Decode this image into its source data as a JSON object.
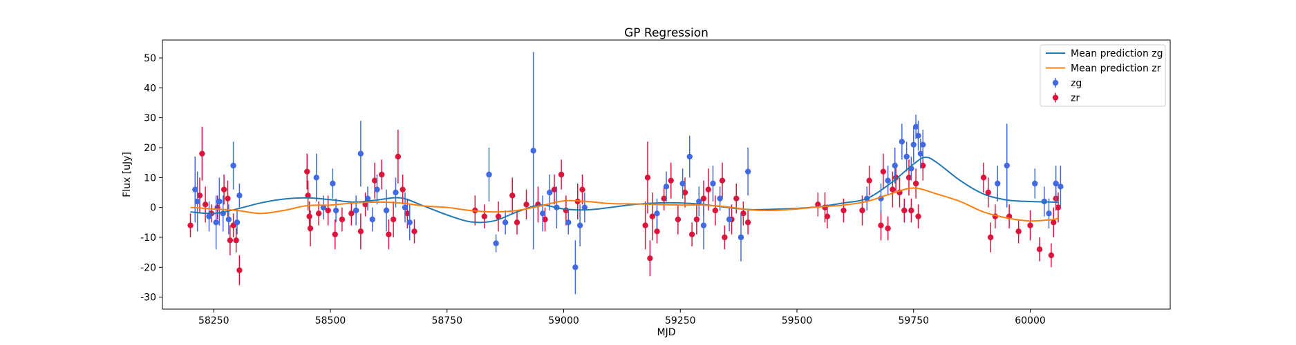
{
  "chart_data": {
    "type": "scatter",
    "title": "GP Regression",
    "xlabel": "MJD",
    "ylabel": "Flux [uJy]",
    "xlim": [
      58140,
      60300
    ],
    "ylim": [
      -34,
      56
    ],
    "xticks": [
      58250,
      58500,
      58750,
      59000,
      59250,
      59500,
      59750,
      60000
    ],
    "yticks": [
      -30,
      -20,
      -10,
      0,
      10,
      20,
      30,
      40,
      50
    ],
    "grid": false,
    "legend_position": "top-right",
    "series": [
      {
        "name": "Mean prediction zg",
        "kind": "line",
        "color": "#1f77b4",
        "x": [
          58200,
          58250,
          58300,
          58350,
          58400,
          58450,
          58500,
          58550,
          58600,
          58650,
          58700,
          58750,
          58800,
          58850,
          58900,
          58950,
          59000,
          59050,
          59100,
          59150,
          59200,
          59250,
          59300,
          59350,
          59400,
          59450,
          59500,
          59550,
          59600,
          59650,
          59700,
          59750,
          59775,
          59800,
          59850,
          59900,
          59950,
          60000,
          60050,
          60060
        ],
        "y": [
          -1.5,
          -2,
          -0.5,
          1.5,
          2.8,
          3.2,
          2.6,
          1.8,
          2.5,
          3.2,
          0.5,
          -2.5,
          -4.8,
          -4.5,
          -1.5,
          0.8,
          -0.5,
          -0.8,
          0,
          1,
          1.5,
          1.5,
          1,
          0,
          -0.7,
          -0.6,
          -0.3,
          0.3,
          1.5,
          3,
          8,
          14.5,
          16.8,
          15,
          9,
          4.5,
          2.5,
          2,
          1.8,
          1.8
        ]
      },
      {
        "name": "Mean prediction zr",
        "kind": "line",
        "color": "#ff7f0e",
        "x": [
          58200,
          58250,
          58300,
          58350,
          58400,
          58450,
          58500,
          58550,
          58600,
          58650,
          58700,
          58750,
          58800,
          58850,
          58900,
          58950,
          59000,
          59050,
          59100,
          59150,
          59200,
          59250,
          59300,
          59350,
          59400,
          59450,
          59500,
          59550,
          59600,
          59650,
          59700,
          59750,
          59800,
          59850,
          59900,
          59950,
          60000,
          60050,
          60060
        ],
        "y": [
          0,
          -0.5,
          -1,
          -2,
          -1,
          0.6,
          0.8,
          1.5,
          1.8,
          1.5,
          0.5,
          0,
          -1,
          -1.5,
          -1,
          0.5,
          2.2,
          2,
          1.3,
          1.2,
          1,
          0.8,
          0.8,
          0.2,
          -0.8,
          -1,
          -0.5,
          0.2,
          0.8,
          2,
          4.5,
          6.5,
          4.5,
          2,
          -1.5,
          -3.5,
          -4.5,
          -4,
          -3.5
        ]
      },
      {
        "name": "zg",
        "kind": "errorbar",
        "color": "#4169e1",
        "points": [
          [
            58210,
            6,
            11
          ],
          [
            58215,
            2,
            10
          ],
          [
            58240,
            -3,
            5
          ],
          [
            58255,
            -5,
            9
          ],
          [
            58262,
            2,
            8
          ],
          [
            58270,
            -2,
            6
          ],
          [
            58282,
            -4,
            5
          ],
          [
            58292,
            14,
            8
          ],
          [
            58300,
            -5,
            4
          ],
          [
            58305,
            4,
            4
          ],
          [
            58470,
            10,
            8
          ],
          [
            58485,
            0,
            4
          ],
          [
            58505,
            8,
            5
          ],
          [
            58512,
            -1,
            4
          ],
          [
            58555,
            -1,
            5
          ],
          [
            58565,
            18,
            11
          ],
          [
            58580,
            3,
            4
          ],
          [
            58590,
            -4,
            4
          ],
          [
            58600,
            6,
            5
          ],
          [
            58620,
            -1,
            7
          ],
          [
            58640,
            5,
            5
          ],
          [
            58660,
            0,
            5
          ],
          [
            58670,
            -5,
            6
          ],
          [
            58840,
            11,
            9
          ],
          [
            58855,
            -12,
            3
          ],
          [
            58875,
            -5,
            4
          ],
          [
            58935,
            19,
            33
          ],
          [
            58955,
            -2,
            6
          ],
          [
            58970,
            5,
            6
          ],
          [
            58985,
            0,
            7
          ],
          [
            59010,
            -5,
            4
          ],
          [
            59025,
            -20,
            9
          ],
          [
            59035,
            -6,
            7
          ],
          [
            59045,
            0,
            5
          ],
          [
            59200,
            -2,
            5
          ],
          [
            59220,
            7,
            5
          ],
          [
            59255,
            8,
            5
          ],
          [
            59270,
            17,
            7
          ],
          [
            59290,
            2,
            5
          ],
          [
            59300,
            -6,
            8
          ],
          [
            59320,
            8,
            6
          ],
          [
            59335,
            3,
            4
          ],
          [
            59355,
            -4,
            4
          ],
          [
            59380,
            -10,
            8
          ],
          [
            59395,
            12,
            8
          ],
          [
            59650,
            3,
            4
          ],
          [
            59680,
            3,
            5
          ],
          [
            59695,
            9,
            5
          ],
          [
            59710,
            14,
            6
          ],
          [
            59725,
            22,
            6
          ],
          [
            59735,
            17,
            5
          ],
          [
            59745,
            13,
            4
          ],
          [
            59750,
            21,
            6
          ],
          [
            59755,
            27,
            4
          ],
          [
            59760,
            24,
            5
          ],
          [
            59765,
            18,
            5
          ],
          [
            59770,
            21,
            5
          ],
          [
            59930,
            8,
            6
          ],
          [
            59950,
            14,
            14
          ],
          [
            60010,
            8,
            5
          ],
          [
            60030,
            2,
            5
          ],
          [
            60040,
            -2,
            5
          ],
          [
            60055,
            8,
            6
          ],
          [
            60065,
            7,
            7
          ]
        ]
      },
      {
        "name": "zr",
        "kind": "errorbar",
        "color": "#dc143c",
        "points": [
          [
            58200,
            -6,
            4
          ],
          [
            58220,
            4,
            6
          ],
          [
            58225,
            18,
            9
          ],
          [
            58232,
            1,
            6
          ],
          [
            58245,
            -2,
            3
          ],
          [
            58258,
            0,
            4
          ],
          [
            58272,
            6,
            5
          ],
          [
            58280,
            3,
            6
          ],
          [
            58285,
            -11,
            5
          ],
          [
            58292,
            -6,
            4
          ],
          [
            58298,
            -11,
            4
          ],
          [
            58305,
            -21,
            5
          ],
          [
            58450,
            12,
            6
          ],
          [
            58452,
            4,
            5
          ],
          [
            58455,
            -3,
            5
          ],
          [
            58457,
            -7,
            6
          ],
          [
            58475,
            -2,
            4
          ],
          [
            58495,
            -1,
            5
          ],
          [
            58510,
            -9,
            5
          ],
          [
            58525,
            -4,
            4
          ],
          [
            58545,
            -2,
            4
          ],
          [
            58565,
            -8,
            6
          ],
          [
            58575,
            1,
            4
          ],
          [
            58595,
            9,
            6
          ],
          [
            58610,
            11,
            5
          ],
          [
            58625,
            -9,
            5
          ],
          [
            58635,
            -4,
            6
          ],
          [
            58645,
            17,
            9
          ],
          [
            58655,
            6,
            5
          ],
          [
            58665,
            -2,
            5
          ],
          [
            58680,
            -8,
            4
          ],
          [
            58810,
            -1,
            5
          ],
          [
            58830,
            -3,
            4
          ],
          [
            58860,
            -3,
            5
          ],
          [
            58890,
            4,
            6
          ],
          [
            58900,
            -5,
            4
          ],
          [
            58920,
            1,
            5
          ],
          [
            58945,
            1,
            6
          ],
          [
            58960,
            -4,
            4
          ],
          [
            58980,
            6,
            5
          ],
          [
            58995,
            11,
            5
          ],
          [
            59005,
            -1,
            5
          ],
          [
            59030,
            2,
            6
          ],
          [
            59040,
            6,
            5
          ],
          [
            59175,
            -6,
            8
          ],
          [
            59180,
            10,
            12
          ],
          [
            59185,
            -17,
            6
          ],
          [
            59190,
            -3,
            8
          ],
          [
            59200,
            -8,
            4
          ],
          [
            59215,
            3,
            4
          ],
          [
            59230,
            9,
            6
          ],
          [
            59245,
            -4,
            5
          ],
          [
            59260,
            5,
            5
          ],
          [
            59275,
            -9,
            4
          ],
          [
            59285,
            -4,
            5
          ],
          [
            59300,
            3,
            6
          ],
          [
            59310,
            6,
            7
          ],
          [
            59325,
            -1,
            5
          ],
          [
            59340,
            9,
            6
          ],
          [
            59345,
            -10,
            4
          ],
          [
            59360,
            -4,
            5
          ],
          [
            59370,
            3,
            5
          ],
          [
            59385,
            -2,
            4
          ],
          [
            59395,
            -5,
            4
          ],
          [
            59545,
            1,
            4
          ],
          [
            59560,
            0,
            5
          ],
          [
            59565,
            -3,
            4
          ],
          [
            59600,
            -1,
            4
          ],
          [
            59640,
            -1,
            5
          ],
          [
            59655,
            9,
            5
          ],
          [
            59680,
            -6,
            5
          ],
          [
            59685,
            12,
            6
          ],
          [
            59695,
            -7,
            4
          ],
          [
            59705,
            6,
            6
          ],
          [
            59712,
            10,
            5
          ],
          [
            59720,
            5,
            5
          ],
          [
            59730,
            -1,
            4
          ],
          [
            59740,
            10,
            6
          ],
          [
            59745,
            -1,
            4
          ],
          [
            59755,
            8,
            5
          ],
          [
            59760,
            -3,
            4
          ],
          [
            59770,
            14,
            5
          ],
          [
            59900,
            10,
            5
          ],
          [
            59910,
            5,
            5
          ],
          [
            59915,
            -10,
            5
          ],
          [
            59925,
            -3,
            4
          ],
          [
            59955,
            -3,
            4
          ],
          [
            59975,
            -8,
            4
          ],
          [
            60000,
            -6,
            5
          ],
          [
            60020,
            -14,
            4
          ],
          [
            60045,
            -16,
            4
          ],
          [
            60050,
            -5,
            5
          ],
          [
            60055,
            3,
            4
          ],
          [
            60060,
            0,
            5
          ]
        ]
      }
    ],
    "legend": [
      {
        "label": "Mean prediction zg",
        "color": "#1f77b4",
        "symbol": "line"
      },
      {
        "label": "Mean prediction zr",
        "color": "#ff7f0e",
        "symbol": "line"
      },
      {
        "label": "zg",
        "color": "#4169e1",
        "symbol": "errorbar"
      },
      {
        "label": "zr",
        "color": "#dc143c",
        "symbol": "errorbar"
      }
    ]
  }
}
